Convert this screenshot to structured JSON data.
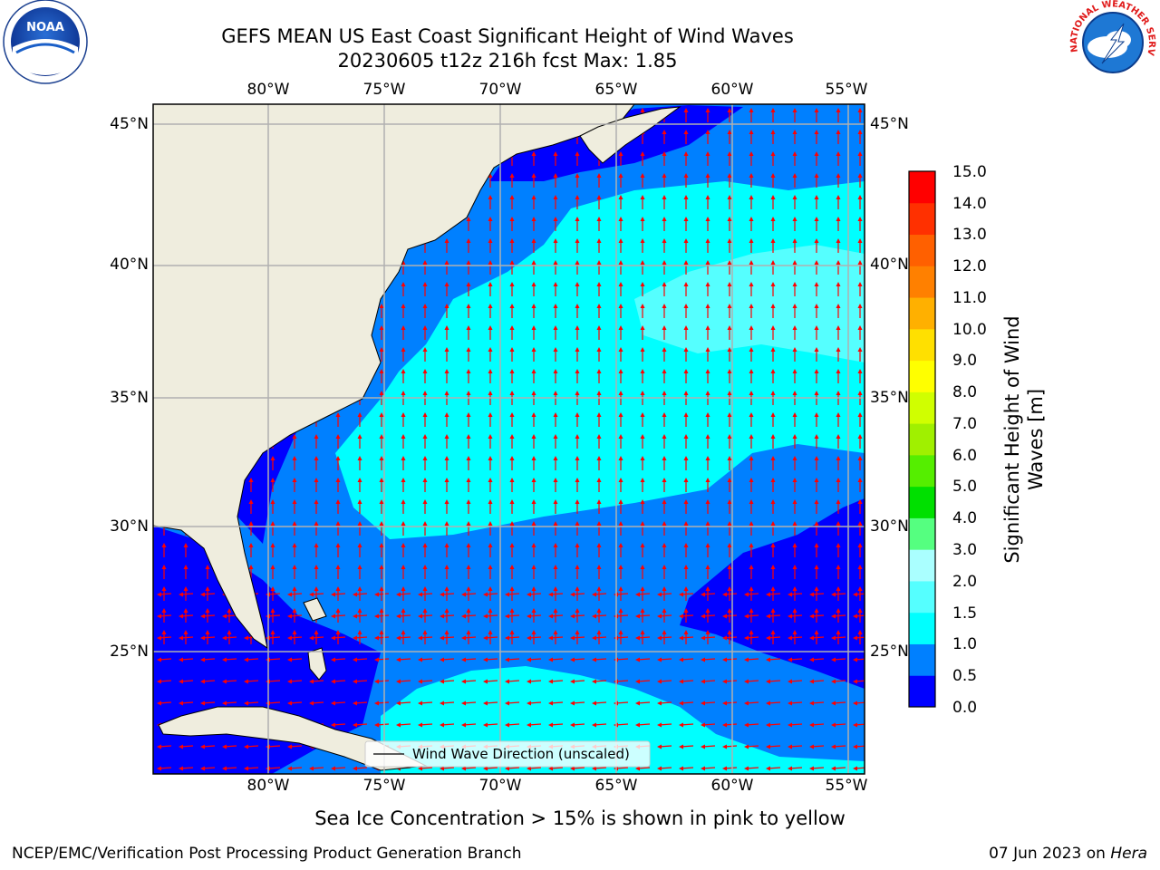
{
  "title": {
    "line1": "GEFS MEAN US East Coast Significant Height of Wind Waves",
    "line2": "20230605 t12z 216h fcst   Max: 1.85"
  },
  "map": {
    "longitude_labels": [
      "80°W",
      "75°W",
      "70°W",
      "65°W",
      "60°W",
      "55°W"
    ],
    "latitude_labels": [
      "45°N",
      "40°N",
      "35°N",
      "30°N",
      "25°N"
    ],
    "legend_label": "Wind Wave Direction (unscaled)",
    "colors": {
      "land": "#efedde",
      "arrow": "#ff0000",
      "grid": "#b0b0b0"
    }
  },
  "colorbar": {
    "label_line1": "Significant Height of Wind",
    "label_line2": "Waves [m]",
    "ticks": [
      "15.0",
      "14.0",
      "13.0",
      "12.0",
      "11.0",
      "10.0",
      "9.0",
      "8.0",
      "7.0",
      "6.0",
      "5.0",
      "4.0",
      "3.0",
      "2.0",
      "1.5",
      "1.0",
      "0.5",
      "0.0"
    ],
    "colors": [
      "#0000ff",
      "#0080ff",
      "#00ffff",
      "#55ffff",
      "#aaffff",
      "#55ff80",
      "#00e000",
      "#55ee00",
      "#a0f000",
      "#d0ff00",
      "#ffff00",
      "#ffe000",
      "#ffb000",
      "#ff8000",
      "#ff6000",
      "#ff3000",
      "#ff0000"
    ]
  },
  "note": "Sea Ice Concentration > 15% is shown in pink to yellow",
  "footer": {
    "left": "NCEP/EMC/Verification Post Processing Product Generation Branch",
    "right_date": "07 Jun 2023 on ",
    "right_machine": "Hera"
  },
  "logos": {
    "noaa": "NOAA",
    "nws": "NATIONAL WEATHER SERVICE"
  }
}
